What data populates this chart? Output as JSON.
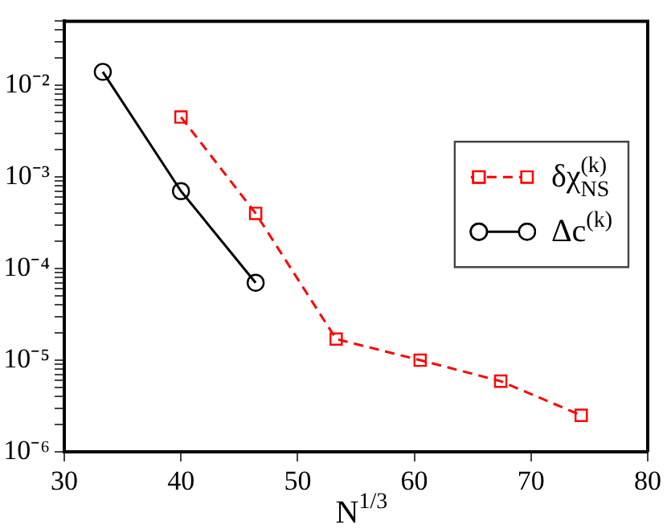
{
  "chart_data": {
    "type": "line",
    "xlabel": "N$^{1/3}$",
    "log": "y",
    "grid": false,
    "legend": "right",
    "xlim": [
      30,
      80
    ],
    "xticks": [
      30,
      40,
      50,
      60,
      70,
      80
    ],
    "ylim": [
      1e-06,
      0.05
    ],
    "yticks": [
      {
        "value": 1e-06,
        "label": "10⁻⁶"
      },
      {
        "value": 2e-06,
        "label": null
      },
      {
        "value": 3e-06,
        "label": null
      },
      {
        "value": 4e-06,
        "label": null
      },
      {
        "value": 5e-06,
        "label": null
      },
      {
        "value": 6e-06,
        "label": null
      },
      {
        "value": 7e-06,
        "label": null
      },
      {
        "value": 8e-06,
        "label": null
      },
      {
        "value": 9e-06,
        "label": null
      },
      {
        "value": 1e-05,
        "label": "10⁻⁵"
      },
      {
        "value": 2e-05,
        "label": null
      },
      {
        "value": 3e-05,
        "label": null
      },
      {
        "value": 4e-05,
        "label": null
      },
      {
        "value": 5e-05,
        "label": null
      },
      {
        "value": 6e-05,
        "label": null
      },
      {
        "value": 7e-05,
        "label": null
      },
      {
        "value": 8e-05,
        "label": null
      },
      {
        "value": 9e-05,
        "label": null
      },
      {
        "value": 0.0001,
        "label": "10⁻⁴"
      },
      {
        "value": 0.0002,
        "label": null
      },
      {
        "value": 0.0003,
        "label": null
      },
      {
        "value": 0.0004,
        "label": null
      },
      {
        "value": 0.0005,
        "label": null
      },
      {
        "value": 0.0006,
        "label": null
      },
      {
        "value": 0.0007,
        "label": null
      },
      {
        "value": 0.0008,
        "label": null
      },
      {
        "value": 0.0009,
        "label": null
      },
      {
        "value": 0.001,
        "label": "10⁻³"
      },
      {
        "value": 0.002,
        "label": null
      },
      {
        "value": 0.003,
        "label": null
      },
      {
        "value": 0.004,
        "label": null
      },
      {
        "value": 0.005,
        "label": null
      },
      {
        "value": 0.006,
        "label": null
      },
      {
        "value": 0.007,
        "label": null
      },
      {
        "value": 0.008,
        "label": null
      },
      {
        "value": 0.009,
        "label": null
      },
      {
        "value": 0.01,
        "label": "10⁻²"
      },
      {
        "value": 0.02,
        "label": null
      },
      {
        "value": 0.03,
        "label": null
      },
      {
        "value": 0.04,
        "label": null
      },
      {
        "value": 0.05,
        "label": null
      }
    ],
    "series": [
      {
        "name": "δχ$_{NS}$$^{(k)}$",
        "color": "#ff0000",
        "marker": "square",
        "line_style": "dashed",
        "x": [
          40,
          46.4,
          53.3,
          60.5,
          67.4,
          74.3
        ],
        "values": [
          0.0045,
          0.0004,
          1.7e-05,
          1e-05,
          5.9e-06,
          2.5e-06
        ]
      },
      {
        "name": "Δc$^{(k)}$",
        "color": "#000000",
        "marker": "circle",
        "line_style": "solid",
        "x": [
          33.3,
          40,
          46.4
        ],
        "values": [
          0.014,
          0.0007,
          7e-05
        ]
      }
    ]
  }
}
